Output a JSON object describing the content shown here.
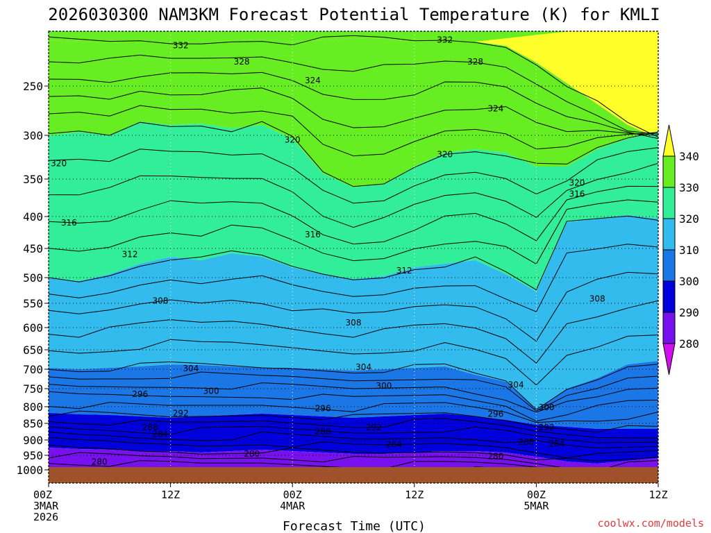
{
  "chart_data": {
    "type": "heatmap",
    "title": "2026030300 NAM3KM Forecast Potential Temperature (K) for KMLI",
    "xlabel": "Forecast Time (UTC)",
    "ylabel": "",
    "credit": "coolwx.com/models",
    "yticks": [
      "250",
      "300",
      "350",
      "400",
      "450",
      "500",
      "550",
      "600",
      "650",
      "700",
      "750",
      "800",
      "850",
      "900",
      "950",
      "1000"
    ],
    "ylim": [
      1000,
      200
    ],
    "xticks": [
      {
        "hour": 0,
        "lines": [
          "00Z",
          "3MAR",
          "2026"
        ]
      },
      {
        "hour": 12,
        "lines": [
          "12Z"
        ]
      },
      {
        "hour": 24,
        "lines": [
          "00Z",
          "4MAR"
        ]
      },
      {
        "hour": 36,
        "lines": [
          "12Z"
        ]
      },
      {
        "hour": 48,
        "lines": [
          "00Z",
          "5MAR"
        ]
      },
      {
        "hour": 60,
        "lines": [
          "12Z"
        ]
      }
    ],
    "xlim": [
      0,
      60
    ],
    "colorbar": {
      "labels": [
        "340",
        "330",
        "320",
        "310",
        "300",
        "290",
        "280"
      ],
      "colors": [
        "#ffff2a",
        "#66ee22",
        "#33ee99",
        "#33bbee",
        "#1c77e6",
        "#0000dd",
        "#7711ee",
        "#cc11ee"
      ]
    },
    "contour_labels": [
      {
        "text": "332",
        "hour": 13,
        "p": 213
      },
      {
        "text": "332",
        "hour": 39,
        "p": 208
      },
      {
        "text": "328",
        "hour": 19,
        "p": 228
      },
      {
        "text": "328",
        "hour": 42,
        "p": 228
      },
      {
        "text": "324",
        "hour": 26,
        "p": 245
      },
      {
        "text": "324",
        "hour": 44,
        "p": 273
      },
      {
        "text": "320",
        "hour": 1,
        "p": 332
      },
      {
        "text": "320",
        "hour": 24,
        "p": 305
      },
      {
        "text": "320",
        "hour": 39,
        "p": 322
      },
      {
        "text": "320",
        "hour": 52,
        "p": 355
      },
      {
        "text": "316",
        "hour": 2,
        "p": 410
      },
      {
        "text": "316",
        "hour": 52,
        "p": 370
      },
      {
        "text": "316",
        "hour": 26,
        "p": 428
      },
      {
        "text": "312",
        "hour": 8,
        "p": 460
      },
      {
        "text": "312",
        "hour": 35,
        "p": 488
      },
      {
        "text": "308",
        "hour": 11,
        "p": 545
      },
      {
        "text": "308",
        "hour": 30,
        "p": 590
      },
      {
        "text": "308",
        "hour": 54,
        "p": 541
      },
      {
        "text": "304",
        "hour": 14,
        "p": 698
      },
      {
        "text": "304",
        "hour": 31,
        "p": 695
      },
      {
        "text": "304",
        "hour": 46,
        "p": 740
      },
      {
        "text": "300",
        "hour": 16,
        "p": 757
      },
      {
        "text": "300",
        "hour": 33,
        "p": 743
      },
      {
        "text": "300",
        "hour": 49,
        "p": 802
      },
      {
        "text": "296",
        "hour": 9,
        "p": 765
      },
      {
        "text": "296",
        "hour": 27,
        "p": 805
      },
      {
        "text": "296",
        "hour": 44,
        "p": 822
      },
      {
        "text": "292",
        "hour": 13,
        "p": 820
      },
      {
        "text": "292",
        "hour": 32,
        "p": 862
      },
      {
        "text": "292",
        "hour": 49,
        "p": 862
      },
      {
        "text": "288",
        "hour": 10,
        "p": 862
      },
      {
        "text": "288",
        "hour": 27,
        "p": 875
      },
      {
        "text": "288",
        "hour": 47,
        "p": 907
      },
      {
        "text": "284",
        "hour": 11,
        "p": 882
      },
      {
        "text": "284",
        "hour": 34,
        "p": 915
      },
      {
        "text": "284",
        "hour": 50,
        "p": 912
      },
      {
        "text": "280",
        "hour": 5,
        "p": 973
      },
      {
        "text": "280",
        "hour": 20,
        "p": 945
      },
      {
        "text": "280",
        "hour": 44,
        "p": 953
      }
    ]
  }
}
